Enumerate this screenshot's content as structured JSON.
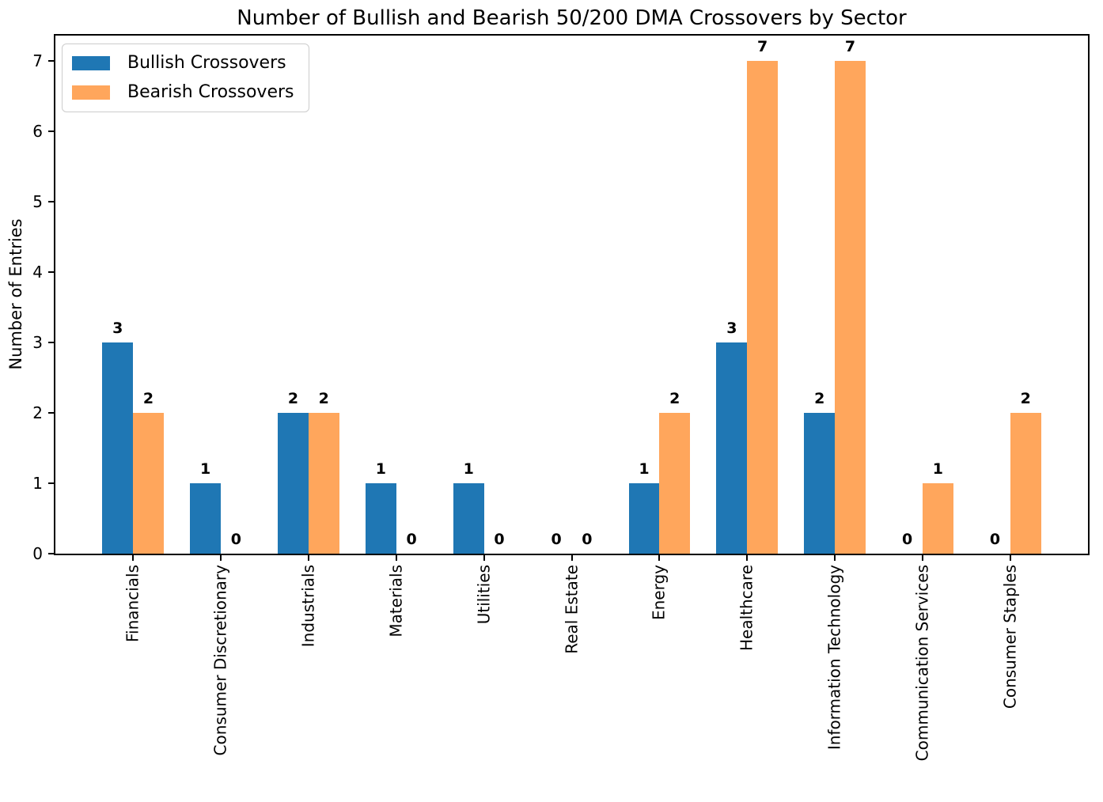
{
  "chart_data": {
    "type": "bar",
    "title": "Number of Bullish and Bearish 50/200 DMA Crossovers by Sector",
    "xlabel": "",
    "ylabel": "Number of Entries",
    "categories": [
      "Financials",
      "Consumer Discretionary",
      "Industrials",
      "Materials",
      "Utilities",
      "Real Estate",
      "Energy",
      "Healthcare",
      "Information Technology",
      "Communication Services",
      "Consumer Staples"
    ],
    "series": [
      {
        "name": "Bullish Crossovers",
        "color": "#1f77b4",
        "values": [
          3,
          1,
          2,
          1,
          1,
          0,
          1,
          3,
          2,
          0,
          0
        ]
      },
      {
        "name": "Bearish Crossovers",
        "color": "#ffa65c",
        "values": [
          2,
          0,
          2,
          0,
          0,
          0,
          2,
          7,
          7,
          1,
          2
        ]
      }
    ],
    "yticks": [
      0,
      1,
      2,
      3,
      4,
      5,
      6,
      7
    ],
    "ylim": [
      0,
      7.36
    ],
    "bar_width_units": 0.35,
    "bar_value_labels": true,
    "legend_position": "upper left",
    "grid": false,
    "spine_color": "#000000",
    "background_color": "#ffffff"
  }
}
